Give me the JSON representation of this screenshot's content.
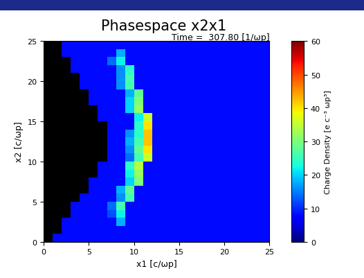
{
  "chart_data": {
    "type": "heatmap",
    "title": "Phasespace x2x1",
    "annotation": "Time =  307.80 [1/ωp]",
    "x_label": "x1 [c/ωp]",
    "y_label": "x2 [c/ωp]",
    "xlim": [
      0,
      25
    ],
    "ylim": [
      0,
      25
    ],
    "xticks": [
      0,
      5,
      10,
      15,
      20,
      25
    ],
    "yticks": [
      0,
      5,
      10,
      15,
      20,
      25
    ],
    "cells": [
      [
        0,
        8,
        8,
        8,
        8,
        8,
        8,
        8,
        8,
        8,
        8,
        8,
        8,
        8,
        8,
        8,
        8,
        8,
        8,
        8,
        8,
        8,
        8,
        8,
        8
      ],
      [
        0,
        0,
        8,
        8,
        8,
        8,
        8,
        8,
        8,
        8,
        8,
        8,
        8,
        8,
        8,
        8,
        8,
        8,
        8,
        8,
        8,
        8,
        8,
        8,
        8
      ],
      [
        0,
        0,
        8,
        8,
        8,
        8,
        8,
        8,
        18,
        8,
        8,
        8,
        8,
        8,
        8,
        8,
        8,
        8,
        8,
        8,
        8,
        8,
        8,
        8,
        8
      ],
      [
        0,
        0,
        0,
        8,
        8,
        8,
        8,
        12,
        22,
        8,
        8,
        8,
        8,
        8,
        8,
        8,
        8,
        8,
        8,
        8,
        8,
        8,
        8,
        8,
        8
      ],
      [
        0,
        0,
        0,
        8,
        8,
        8,
        8,
        14,
        26,
        8,
        8,
        8,
        8,
        8,
        8,
        8,
        8,
        8,
        8,
        8,
        8,
        8,
        8,
        8,
        8
      ],
      [
        0,
        0,
        0,
        0,
        8,
        8,
        8,
        8,
        16,
        26,
        8,
        8,
        8,
        8,
        8,
        8,
        8,
        8,
        8,
        8,
        8,
        8,
        8,
        8,
        8
      ],
      [
        0,
        0,
        0,
        0,
        0,
        8,
        8,
        8,
        18,
        28,
        8,
        8,
        8,
        8,
        8,
        8,
        8,
        8,
        8,
        8,
        8,
        8,
        8,
        8,
        8
      ],
      [
        0,
        0,
        0,
        0,
        0,
        8,
        8,
        8,
        8,
        20,
        30,
        8,
        8,
        8,
        8,
        8,
        8,
        8,
        8,
        8,
        8,
        8,
        8,
        8,
        8
      ],
      [
        0,
        0,
        0,
        0,
        0,
        0,
        8,
        8,
        8,
        22,
        32,
        8,
        8,
        8,
        8,
        8,
        8,
        8,
        8,
        8,
        8,
        8,
        8,
        8,
        8
      ],
      [
        0,
        0,
        0,
        0,
        0,
        0,
        8,
        8,
        8,
        24,
        34,
        8,
        8,
        8,
        8,
        8,
        8,
        8,
        8,
        8,
        8,
        8,
        8,
        8,
        8
      ],
      [
        0,
        0,
        0,
        0,
        0,
        0,
        0,
        8,
        8,
        14,
        26,
        36,
        8,
        8,
        8,
        8,
        8,
        8,
        8,
        8,
        8,
        8,
        8,
        8,
        8
      ],
      [
        0,
        0,
        0,
        0,
        0,
        0,
        0,
        8,
        8,
        16,
        28,
        40,
        8,
        8,
        8,
        8,
        8,
        8,
        8,
        8,
        8,
        8,
        8,
        8,
        8
      ],
      [
        0,
        0,
        0,
        0,
        0,
        0,
        0,
        8,
        8,
        18,
        26,
        42,
        8,
        8,
        8,
        8,
        8,
        8,
        8,
        8,
        8,
        8,
        8,
        8,
        8
      ],
      [
        0,
        0,
        0,
        0,
        0,
        0,
        0,
        8,
        8,
        16,
        24,
        42,
        8,
        8,
        8,
        8,
        8,
        8,
        8,
        8,
        8,
        8,
        8,
        8,
        8
      ],
      [
        0,
        0,
        0,
        0,
        0,
        0,
        0,
        8,
        8,
        8,
        24,
        40,
        8,
        8,
        8,
        8,
        8,
        8,
        8,
        8,
        8,
        8,
        8,
        8,
        8
      ],
      [
        0,
        0,
        0,
        0,
        0,
        0,
        8,
        8,
        8,
        8,
        22,
        36,
        8,
        8,
        8,
        8,
        8,
        8,
        8,
        8,
        8,
        8,
        8,
        8,
        8
      ],
      [
        0,
        0,
        0,
        0,
        0,
        0,
        8,
        8,
        8,
        20,
        32,
        8,
        8,
        8,
        8,
        8,
        8,
        8,
        8,
        8,
        8,
        8,
        8,
        8,
        8
      ],
      [
        0,
        0,
        0,
        0,
        0,
        8,
        8,
        8,
        8,
        20,
        30,
        8,
        8,
        8,
        8,
        8,
        8,
        8,
        8,
        8,
        8,
        8,
        8,
        8,
        8
      ],
      [
        0,
        0,
        0,
        0,
        0,
        8,
        8,
        8,
        8,
        18,
        28,
        8,
        8,
        8,
        8,
        8,
        8,
        8,
        8,
        8,
        8,
        8,
        8,
        8,
        8
      ],
      [
        0,
        0,
        0,
        0,
        8,
        8,
        8,
        8,
        16,
        26,
        8,
        8,
        8,
        8,
        8,
        8,
        8,
        8,
        8,
        8,
        8,
        8,
        8,
        8,
        8
      ],
      [
        0,
        0,
        0,
        0,
        8,
        8,
        8,
        8,
        16,
        26,
        8,
        8,
        8,
        8,
        8,
        8,
        8,
        8,
        8,
        8,
        8,
        8,
        8,
        8,
        8
      ],
      [
        0,
        0,
        0,
        8,
        8,
        8,
        8,
        8,
        16,
        24,
        8,
        8,
        8,
        8,
        8,
        8,
        8,
        8,
        8,
        8,
        8,
        8,
        8,
        8,
        8
      ],
      [
        0,
        0,
        0,
        8,
        8,
        8,
        8,
        14,
        22,
        8,
        8,
        8,
        8,
        8,
        8,
        8,
        8,
        8,
        8,
        8,
        8,
        8,
        8,
        8,
        8
      ],
      [
        0,
        0,
        8,
        8,
        8,
        8,
        8,
        8,
        18,
        8,
        8,
        8,
        8,
        8,
        8,
        8,
        8,
        8,
        8,
        8,
        8,
        8,
        8,
        8,
        8
      ],
      [
        0,
        0,
        8,
        8,
        8,
        8,
        8,
        8,
        8,
        8,
        8,
        8,
        8,
        8,
        8,
        8,
        8,
        8,
        8,
        8,
        8,
        8,
        8,
        8,
        8
      ]
    ],
    "colorbar": {
      "label": "Charge Density [e c⁻³ ωp³]",
      "range": [
        0,
        60
      ],
      "ticks": [
        0,
        10,
        20,
        30,
        40,
        50,
        60
      ]
    }
  }
}
